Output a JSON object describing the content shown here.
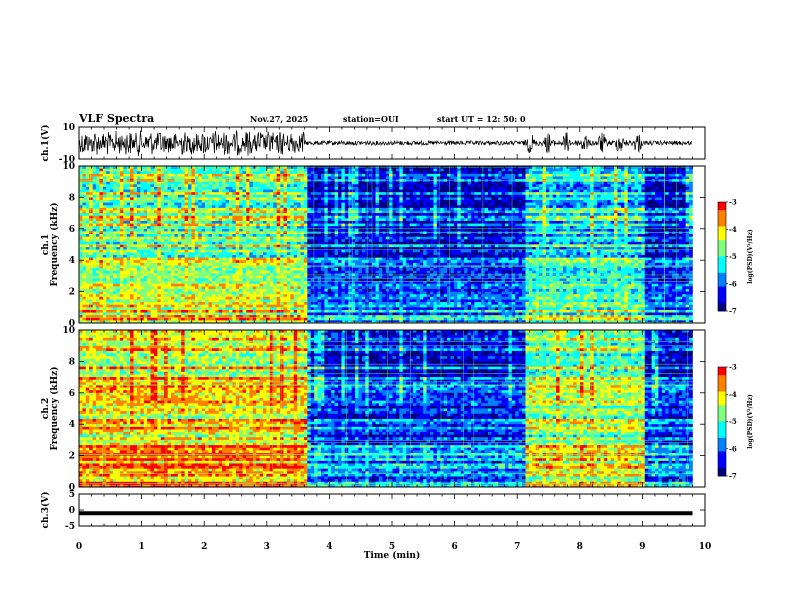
{
  "header": {
    "title": "VLF Spectra",
    "date": "Nov.27, 2025",
    "station": "station=OUI",
    "start": "start  UT =   12: 50: 0"
  },
  "chart_data": [
    {
      "type": "line",
      "title": "",
      "ylabel": "ch.1(V)",
      "xlim": [
        0,
        10
      ],
      "ylim": [
        -10,
        10
      ],
      "yticks": [
        "10",
        "-10"
      ],
      "description_segments": [
        {
          "x": [
            0,
            3.6
          ],
          "amplitude": "large bursts"
        },
        {
          "x": [
            3.6,
            7.1
          ],
          "amplitude": "low"
        },
        {
          "x": [
            7.1,
            9.0
          ],
          "amplitude": "medium bursts"
        },
        {
          "x": [
            9.0,
            9.8
          ],
          "amplitude": "low"
        }
      ]
    },
    {
      "type": "heatmap",
      "ylabel": "ch.1\nFrequency (kHz)",
      "xlim": [
        0,
        9.8
      ],
      "ylim": [
        0,
        10
      ],
      "yticks": [
        "0",
        "2",
        "4",
        "6",
        "8",
        "10"
      ],
      "colorbar": {
        "label": "log(PSD)(V²/Hz)",
        "range": [
          -7,
          -3
        ],
        "ticks": [
          "-3",
          "-4",
          "-5",
          "-6",
          "-7"
        ]
      },
      "segments": [
        {
          "x": [
            0,
            3.6
          ],
          "level": "high"
        },
        {
          "x": [
            3.6,
            7.1
          ],
          "level": "low"
        },
        {
          "x": [
            7.1,
            9.0
          ],
          "level": "medium"
        },
        {
          "x": [
            9.0,
            9.8
          ],
          "level": "low"
        }
      ]
    },
    {
      "type": "heatmap",
      "ylabel": "ch.2\nFrequency (kHz)",
      "xlim": [
        0,
        9.8
      ],
      "ylim": [
        0,
        10
      ],
      "yticks": [
        "0",
        "2",
        "4",
        "6",
        "8",
        "10"
      ],
      "colorbar": {
        "label": "log(PSD)(V²/Hz)",
        "range": [
          -7,
          -3
        ],
        "ticks": [
          "-3",
          "-4",
          "-5",
          "-6",
          "-7"
        ]
      },
      "segments": [
        {
          "x": [
            0,
            3.6
          ],
          "level": "very high"
        },
        {
          "x": [
            3.6,
            7.1
          ],
          "level": "low"
        },
        {
          "x": [
            7.1,
            9.0
          ],
          "level": "high"
        },
        {
          "x": [
            9.0,
            9.8
          ],
          "level": "low"
        }
      ]
    },
    {
      "type": "line",
      "ylabel": "ch.3(V)",
      "xlim": [
        0,
        10
      ],
      "ylim": [
        -5,
        5
      ],
      "yticks": [
        "5",
        "0",
        "-5"
      ],
      "x": [
        0,
        9.8
      ],
      "y": [
        -1,
        -1
      ]
    }
  ],
  "xaxis": {
    "label": "Time  (min)",
    "ticks": [
      "0",
      "1",
      "2",
      "3",
      "4",
      "5",
      "6",
      "7",
      "8",
      "9",
      "10"
    ]
  },
  "colors": {
    "palette": [
      "#00007f",
      "#0000ff",
      "#0080ff",
      "#00ffff",
      "#7fff7f",
      "#ffff00",
      "#ff8000",
      "#ff0000",
      "#ffffff"
    ]
  }
}
